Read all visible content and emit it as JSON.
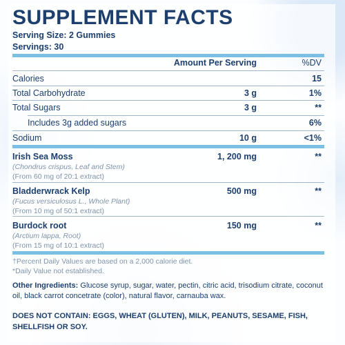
{
  "title": "SUPPLEMENT FACTS",
  "serving_size": "Serving Size: 2 Gummies",
  "servings": "Servings: 30",
  "header": {
    "amount": "Amount Per Serving",
    "dv": "%DV"
  },
  "rows": [
    {
      "label": "Calories",
      "amount": "",
      "dv": "15"
    },
    {
      "label": "Total Carbohydrate",
      "amount": "3 g",
      "dv": "1%"
    },
    {
      "label": "Total Sugars",
      "amount": "3 g",
      "dv": "**"
    },
    {
      "label": "Includes 3g added sugars",
      "amount": "",
      "dv": "6%"
    },
    {
      "label": "Sodium",
      "amount": "10 g",
      "dv": "<1%"
    }
  ],
  "ingredients": [
    {
      "name": "Irish Sea Moss",
      "latin": "(Chondrus crispus, Leaf and Stem)",
      "extract": "(From 60 mg of 20:1 extract)",
      "amount": "1, 200 mg",
      "dv": "**"
    },
    {
      "name": "Bladderwrack Kelp",
      "latin": "(Fucus versiculosus L., Whole Plant)",
      "extract": "(From 10 mg of 50:1 extract)",
      "amount": "500 mg",
      "dv": "**"
    },
    {
      "name": "Burdock root",
      "latin": "(Arctium lappa, Root)",
      "extract": "(From 15 mg of 10:1 extract)",
      "amount": "150 mg",
      "dv": "**"
    }
  ],
  "footnotes": [
    "†Percent Daily Values are based on a 2,000 calorie diet.",
    "*Daily Value not established."
  ],
  "other_label": "Other Ingredients:",
  "other_text": "Other Ingredients: Glucose syrup, sugar, water, pectin, citric acid, trisodium citrate, coconut oil, black carrot concetrate (color), natural flavor, carnauba wax.",
  "does_not_contain": "DOES NOT CONTAIN: EGGS, WHEAT (GLUTEN), MILK, PEANUTS, SESAME, FISH, SHELLFISH OR SOY.",
  "colors": {
    "text": "#1c3f6e",
    "accent_bar": "#7bbfe4",
    "muted": "#7f93ab"
  }
}
